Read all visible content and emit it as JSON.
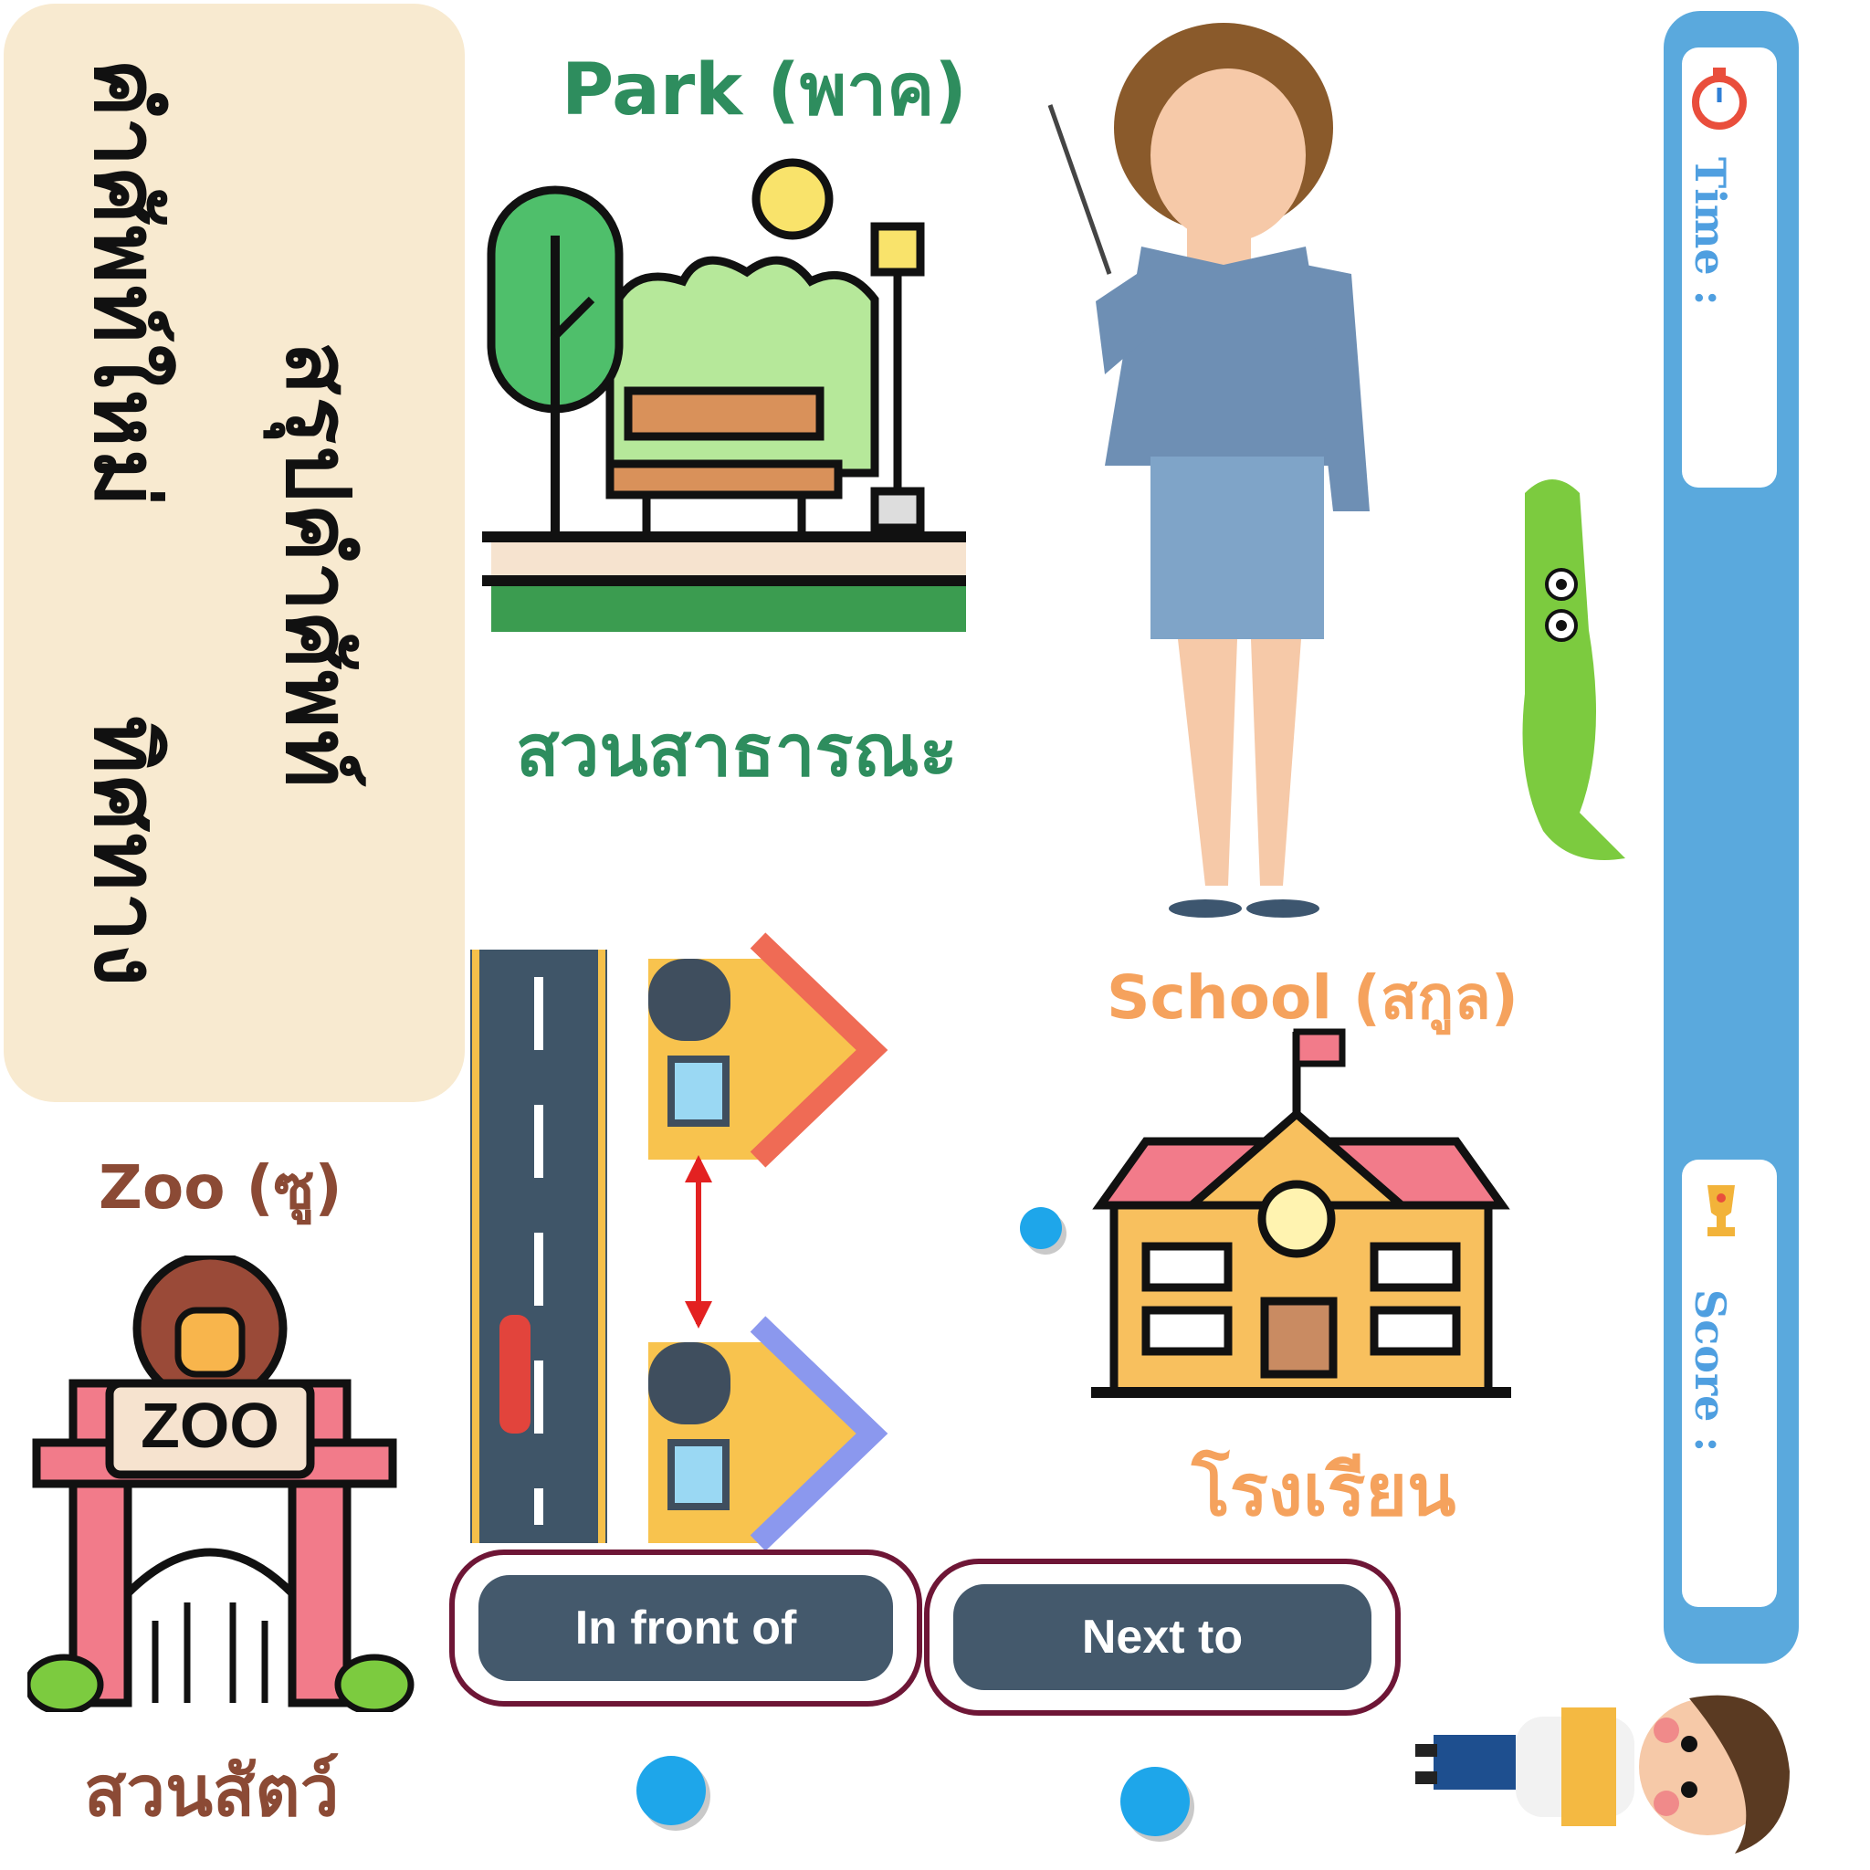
{
  "title_panel": {
    "line1": "คำศัพท์ใหม่",
    "line2": "ทิศทาง",
    "line3": "สรุปคำศัพท์"
  },
  "places": {
    "park": {
      "english": "Park (พาค)",
      "thai": "สวนสาธารณะ"
    },
    "school": {
      "english": "School (สกูล)",
      "thai": "โรงเรียน"
    },
    "zoo": {
      "english": "Zoo (ซู)",
      "thai": "สวนสัตว์",
      "sign_text": "ZOO"
    }
  },
  "answers": {
    "option1": "In front of",
    "option2": "Next to"
  },
  "status_bar": {
    "time_label": "Time :",
    "score_label": "Score :",
    "time_icon": "stopwatch-icon",
    "score_icon": "trophy-icon"
  },
  "colors": {
    "panel": "#f8ead0",
    "park_text": "#2e8d5e",
    "school_text": "#f5a25d",
    "zoo_text": "#8b4a35",
    "button": "#44596c",
    "button_border": "#6e1636",
    "side_bar": "#5aa9dd",
    "dot": "#1ea6ea"
  }
}
